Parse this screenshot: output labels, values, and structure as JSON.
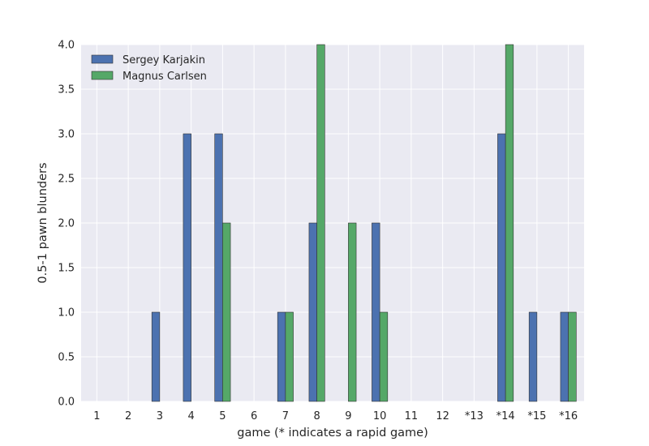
{
  "chart_data": {
    "type": "bar",
    "categories": [
      "1",
      "2",
      "3",
      "4",
      "5",
      "6",
      "7",
      "8",
      "9",
      "10",
      "11",
      "12",
      "*13",
      "*14",
      "*15",
      "*16"
    ],
    "series": [
      {
        "name": "Sergey Karjakin",
        "color": "#4c72b0",
        "values": [
          0,
          0,
          1,
          3,
          3,
          0,
          1,
          2,
          0,
          2,
          0,
          0,
          0,
          3,
          1,
          1
        ]
      },
      {
        "name": "Magnus Carlsen",
        "color": "#55a868",
        "values": [
          0,
          0,
          0,
          0,
          2,
          0,
          1,
          4,
          2,
          1,
          0,
          0,
          0,
          4,
          0,
          1
        ]
      }
    ],
    "xlabel": "game (* indicates a rapid game)",
    "ylabel": "0.5-1 pawn blunders",
    "ylim": [
      0,
      4
    ],
    "yticks": [
      "0.0",
      "0.5",
      "1.0",
      "1.5",
      "2.0",
      "2.5",
      "3.0",
      "3.5",
      "4.0"
    ],
    "grid": true,
    "background": "#eaeaf2",
    "legend_position": "top-left"
  }
}
